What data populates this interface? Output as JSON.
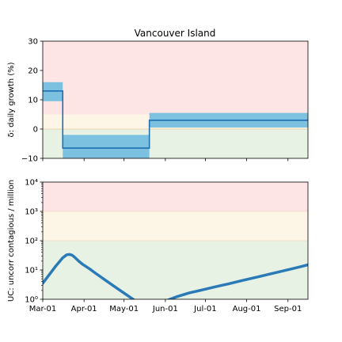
{
  "chart_data": [
    {
      "type": "line",
      "title": "Vancouver Island",
      "ylabel": "δ: daily growth (%)",
      "ylim": [
        -10,
        30
      ],
      "yticks": [
        -10,
        0,
        10,
        20,
        30
      ],
      "ytick_labels": [
        "−10",
        "0",
        "10",
        "20",
        "30"
      ],
      "zones": [
        {
          "from": 5,
          "to": 30,
          "color": "#fde5e5"
        },
        {
          "from": 0,
          "to": 5,
          "color": "#fdf5e6"
        },
        {
          "from": -10,
          "to": 0,
          "color": "#e7f2e4"
        }
      ],
      "zero_line": 0,
      "series": [
        {
          "type": "step",
          "color": "#1f6fb0",
          "band_color": "#7cc2e0",
          "segments": [
            {
              "x_start": 0,
              "x_end": 15,
              "value": 13,
              "low": 9.5,
              "high": 16
            },
            {
              "x_start": 15,
              "x_end": 80,
              "value": -6.5,
              "low": -10,
              "high": -2
            },
            {
              "x_start": 80,
              "x_end": 199,
              "value": 3,
              "low": 0.5,
              "high": 5.5
            }
          ]
        }
      ]
    },
    {
      "type": "line",
      "ylabel": "UC: uncorr contagious / million",
      "yscale": "log",
      "ylim": [
        1,
        10000
      ],
      "yticks": [
        1,
        10,
        100,
        1000,
        10000
      ],
      "ytick_labels": [
        "10⁰",
        "10¹",
        "10²",
        "10³",
        "10⁴"
      ],
      "zones": [
        {
          "from": 1000,
          "to": 10000,
          "color": "#fde5e5"
        },
        {
          "from": 100,
          "to": 1000,
          "color": "#fdf5e6"
        },
        {
          "from": 1,
          "to": 100,
          "color": "#e7f2e4"
        }
      ],
      "series": [
        {
          "color": "#2a7ab8",
          "x": [
            0,
            5,
            10,
            15,
            18,
            20,
            22,
            24,
            27,
            30,
            35,
            40,
            45,
            50,
            55,
            60,
            65,
            70,
            75,
            90,
            100,
            110,
            120,
            130,
            140,
            150,
            160,
            170,
            180,
            190,
            199
          ],
          "y": [
            3.5,
            7,
            14,
            26,
            33,
            34,
            32,
            27,
            20,
            15.5,
            11,
            7.5,
            5.2,
            3.6,
            2.5,
            1.75,
            1.22,
            0.85,
            0.6,
            0.8,
            1.2,
            1.65,
            2.1,
            2.7,
            3.4,
            4.4,
            5.6,
            7.2,
            9.2,
            11.8,
            15
          ]
        }
      ],
      "xticks": [
        0,
        31,
        61,
        92,
        122,
        153,
        184
      ],
      "xtick_labels": [
        "Mar-01",
        "Apr-01",
        "May-01",
        "Jun-01",
        "Jul-01",
        "Aug-01",
        "Sep-01"
      ],
      "xlim": [
        0,
        199
      ]
    }
  ]
}
